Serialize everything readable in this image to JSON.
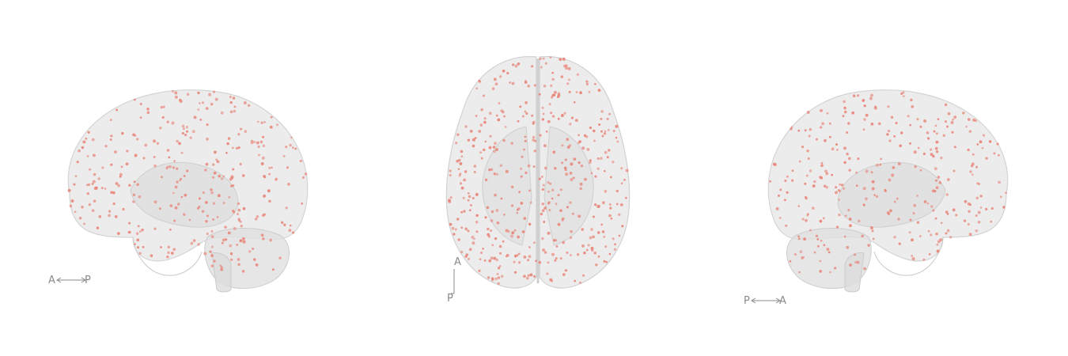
{
  "views": [
    {
      "id": "lateral-left",
      "orientation": {
        "from": "A",
        "to": "P"
      },
      "dots": 320
    },
    {
      "id": "superior",
      "orientation": {
        "from": "A",
        "to": "P"
      },
      "dots": 420
    },
    {
      "id": "lateral-right",
      "orientation": {
        "from": "P",
        "to": "A"
      },
      "dots": 300
    }
  ],
  "colors": {
    "background": "#ffffff",
    "brain_fill": "#e4e4e4",
    "brain_stroke": "#d2d2d2",
    "dot": "#e8867a",
    "label": "#8a8a8a"
  }
}
